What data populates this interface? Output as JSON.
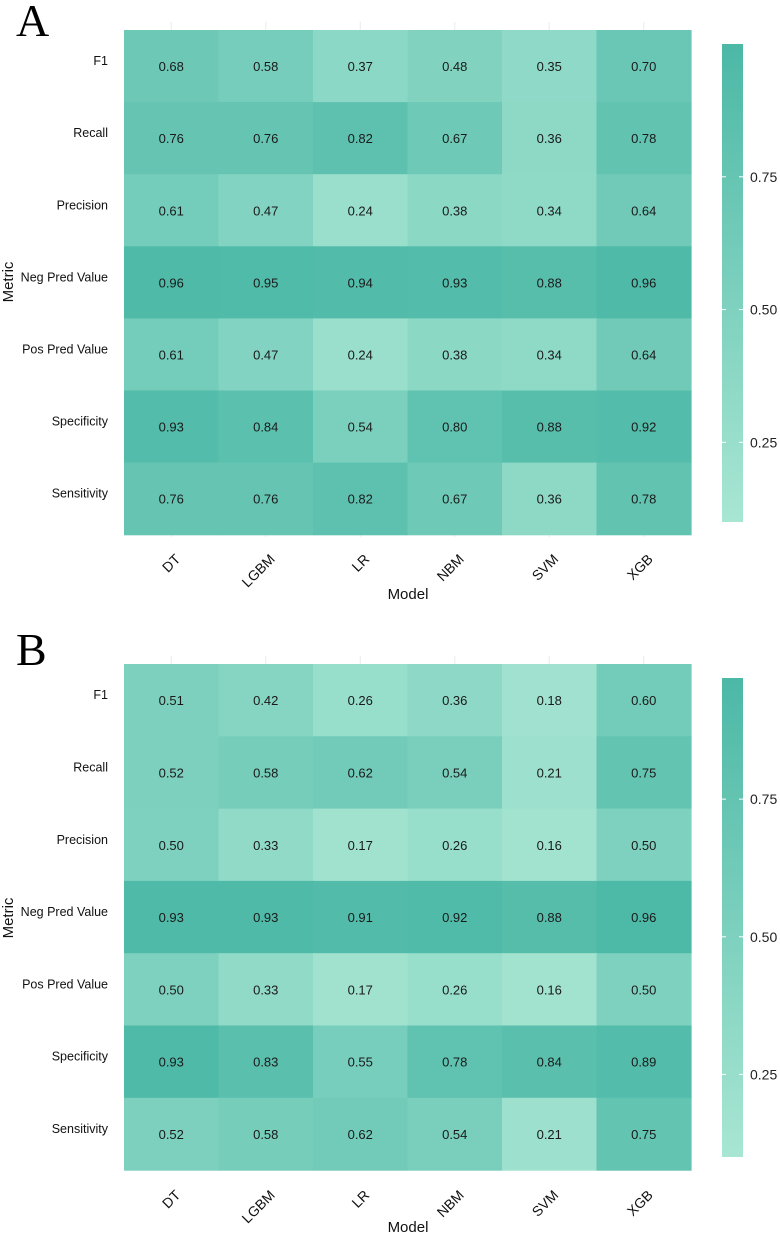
{
  "chart_data": [
    {
      "type": "heatmap",
      "panel_label": "A",
      "xlabel": "Model",
      "ylabel": "Metric",
      "x_categories": [
        "DT",
        "LGBM",
        "LR",
        "NBM",
        "SVM",
        "XGB"
      ],
      "y_categories": [
        "F1",
        "Recall",
        "Precision",
        "Neg Pred Value",
        "Pos Pred Value",
        "Specificity",
        "Sensitivity"
      ],
      "values": [
        [
          0.68,
          0.58,
          0.37,
          0.48,
          0.35,
          0.7
        ],
        [
          0.76,
          0.76,
          0.82,
          0.67,
          0.36,
          0.78
        ],
        [
          0.61,
          0.47,
          0.24,
          0.38,
          0.34,
          0.64
        ],
        [
          0.96,
          0.95,
          0.94,
          0.93,
          0.88,
          0.96
        ],
        [
          0.61,
          0.47,
          0.24,
          0.38,
          0.34,
          0.64
        ],
        [
          0.93,
          0.84,
          0.54,
          0.8,
          0.88,
          0.92
        ],
        [
          0.76,
          0.76,
          0.82,
          0.67,
          0.36,
          0.78
        ]
      ],
      "colorbar": {
        "ticks": [
          "0.25",
          "0.50",
          "0.75"
        ],
        "tick_values": [
          0.25,
          0.5,
          0.75
        ],
        "range": [
          0.1,
          1.0
        ]
      }
    },
    {
      "type": "heatmap",
      "panel_label": "B",
      "xlabel": "Model",
      "ylabel": "Metric",
      "x_categories": [
        "DT",
        "LGBM",
        "LR",
        "NBM",
        "SVM",
        "XGB"
      ],
      "y_categories": [
        "F1",
        "Recall",
        "Precision",
        "Neg Pred Value",
        "Pos Pred Value",
        "Specificity",
        "Sensitivity"
      ],
      "values": [
        [
          0.51,
          0.42,
          0.26,
          0.36,
          0.18,
          0.6
        ],
        [
          0.52,
          0.58,
          0.62,
          0.54,
          0.21,
          0.75
        ],
        [
          0.5,
          0.33,
          0.17,
          0.26,
          0.16,
          0.5
        ],
        [
          0.93,
          0.93,
          0.91,
          0.92,
          0.88,
          0.96
        ],
        [
          0.5,
          0.33,
          0.17,
          0.26,
          0.16,
          0.5
        ],
        [
          0.93,
          0.83,
          0.55,
          0.78,
          0.84,
          0.89
        ],
        [
          0.52,
          0.58,
          0.62,
          0.54,
          0.21,
          0.75
        ]
      ],
      "colorbar": {
        "ticks": [
          "0.25",
          "0.50",
          "0.75"
        ],
        "tick_values": [
          0.25,
          0.5,
          0.75
        ],
        "range": [
          0.1,
          0.97
        ]
      }
    }
  ],
  "colors": {
    "low": "#a8e6d3",
    "high": "#4cb8a6"
  }
}
